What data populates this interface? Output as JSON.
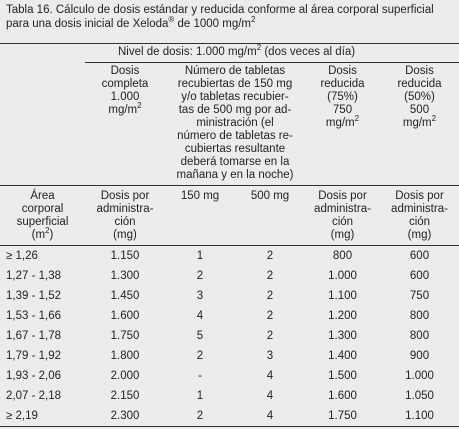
{
  "title": {
    "text": "Tabla 16. Cálculo de dosis estándar y reducida conforme al área corporal superficial para una dosis inicial de Xeloda",
    "sup": "®",
    "text2": " de 1000 mg/m",
    "sup2": "2"
  },
  "dose_level": {
    "text": "Nivel de dosis: 1.000 mg/m",
    "sup": "2",
    "text2": " (dos veces al día)"
  },
  "group_header": [
    {
      "lines": [
        "Dosis",
        "completa",
        "1.000",
        {
          "text": "mg/m",
          "sup": "2"
        }
      ]
    },
    {
      "lines": [
        "Número de tabletas",
        "recubiertas de 150 mg",
        "y/o tabletas recubier-",
        "tas de 500 mg por ad-",
        "ministración (el",
        "número de tabletas re-",
        "cubiertas resultante",
        "deberá tomarse en la",
        "mañana y en la noche)"
      ]
    },
    {
      "lines": [
        "Dosis",
        "reducida",
        "(75%)",
        "750",
        {
          "text": "mg/m",
          "sup": "2"
        }
      ]
    },
    {
      "lines": [
        "Dosis",
        "reducida",
        "(50%)",
        "500",
        {
          "text": "mg/m",
          "sup": "2"
        }
      ]
    }
  ],
  "column_header": [
    {
      "lines": [
        "Área",
        "corporal",
        "superficial",
        {
          "text": "(m",
          "sup": "2",
          "text2": ")"
        }
      ]
    },
    {
      "lines": [
        "Dosis por",
        "administra-",
        "ción",
        "(mg)"
      ]
    },
    {
      "lines": [
        "150 mg"
      ]
    },
    {
      "lines": [
        "500 mg"
      ]
    },
    {
      "lines": [
        "Dosis por",
        "administra-",
        "ción",
        "(mg)"
      ]
    },
    {
      "lines": [
        "Dosis por",
        "administra-",
        "ción",
        "(mg)"
      ]
    }
  ],
  "table": {
    "rows": [
      [
        "≥ 1,26",
        "1.150",
        "1",
        "2",
        "800",
        "600"
      ],
      [
        "1,27 - 1,38",
        "1.300",
        "2",
        "2",
        "1.000",
        "600"
      ],
      [
        "1,39 - 1,52",
        "1.450",
        "3",
        "2",
        "1.100",
        "750"
      ],
      [
        "1,53 - 1,66",
        "1.600",
        "4",
        "2",
        "1.200",
        "800"
      ],
      [
        "1,67 - 1,78",
        "1.750",
        "5",
        "2",
        "1.300",
        "800"
      ],
      [
        "1,79 - 1,92",
        "1.800",
        "2",
        "3",
        "1.400",
        "900"
      ],
      [
        "1,93 - 2,06",
        "2.000",
        "-",
        "4",
        "1.500",
        "1.000"
      ],
      [
        "2,07 - 2,18",
        "2.150",
        "1",
        "4",
        "1.600",
        "1.050"
      ],
      [
        "≥ 2,19",
        "2.300",
        "2",
        "4",
        "1.750",
        "1.100"
      ]
    ]
  }
}
